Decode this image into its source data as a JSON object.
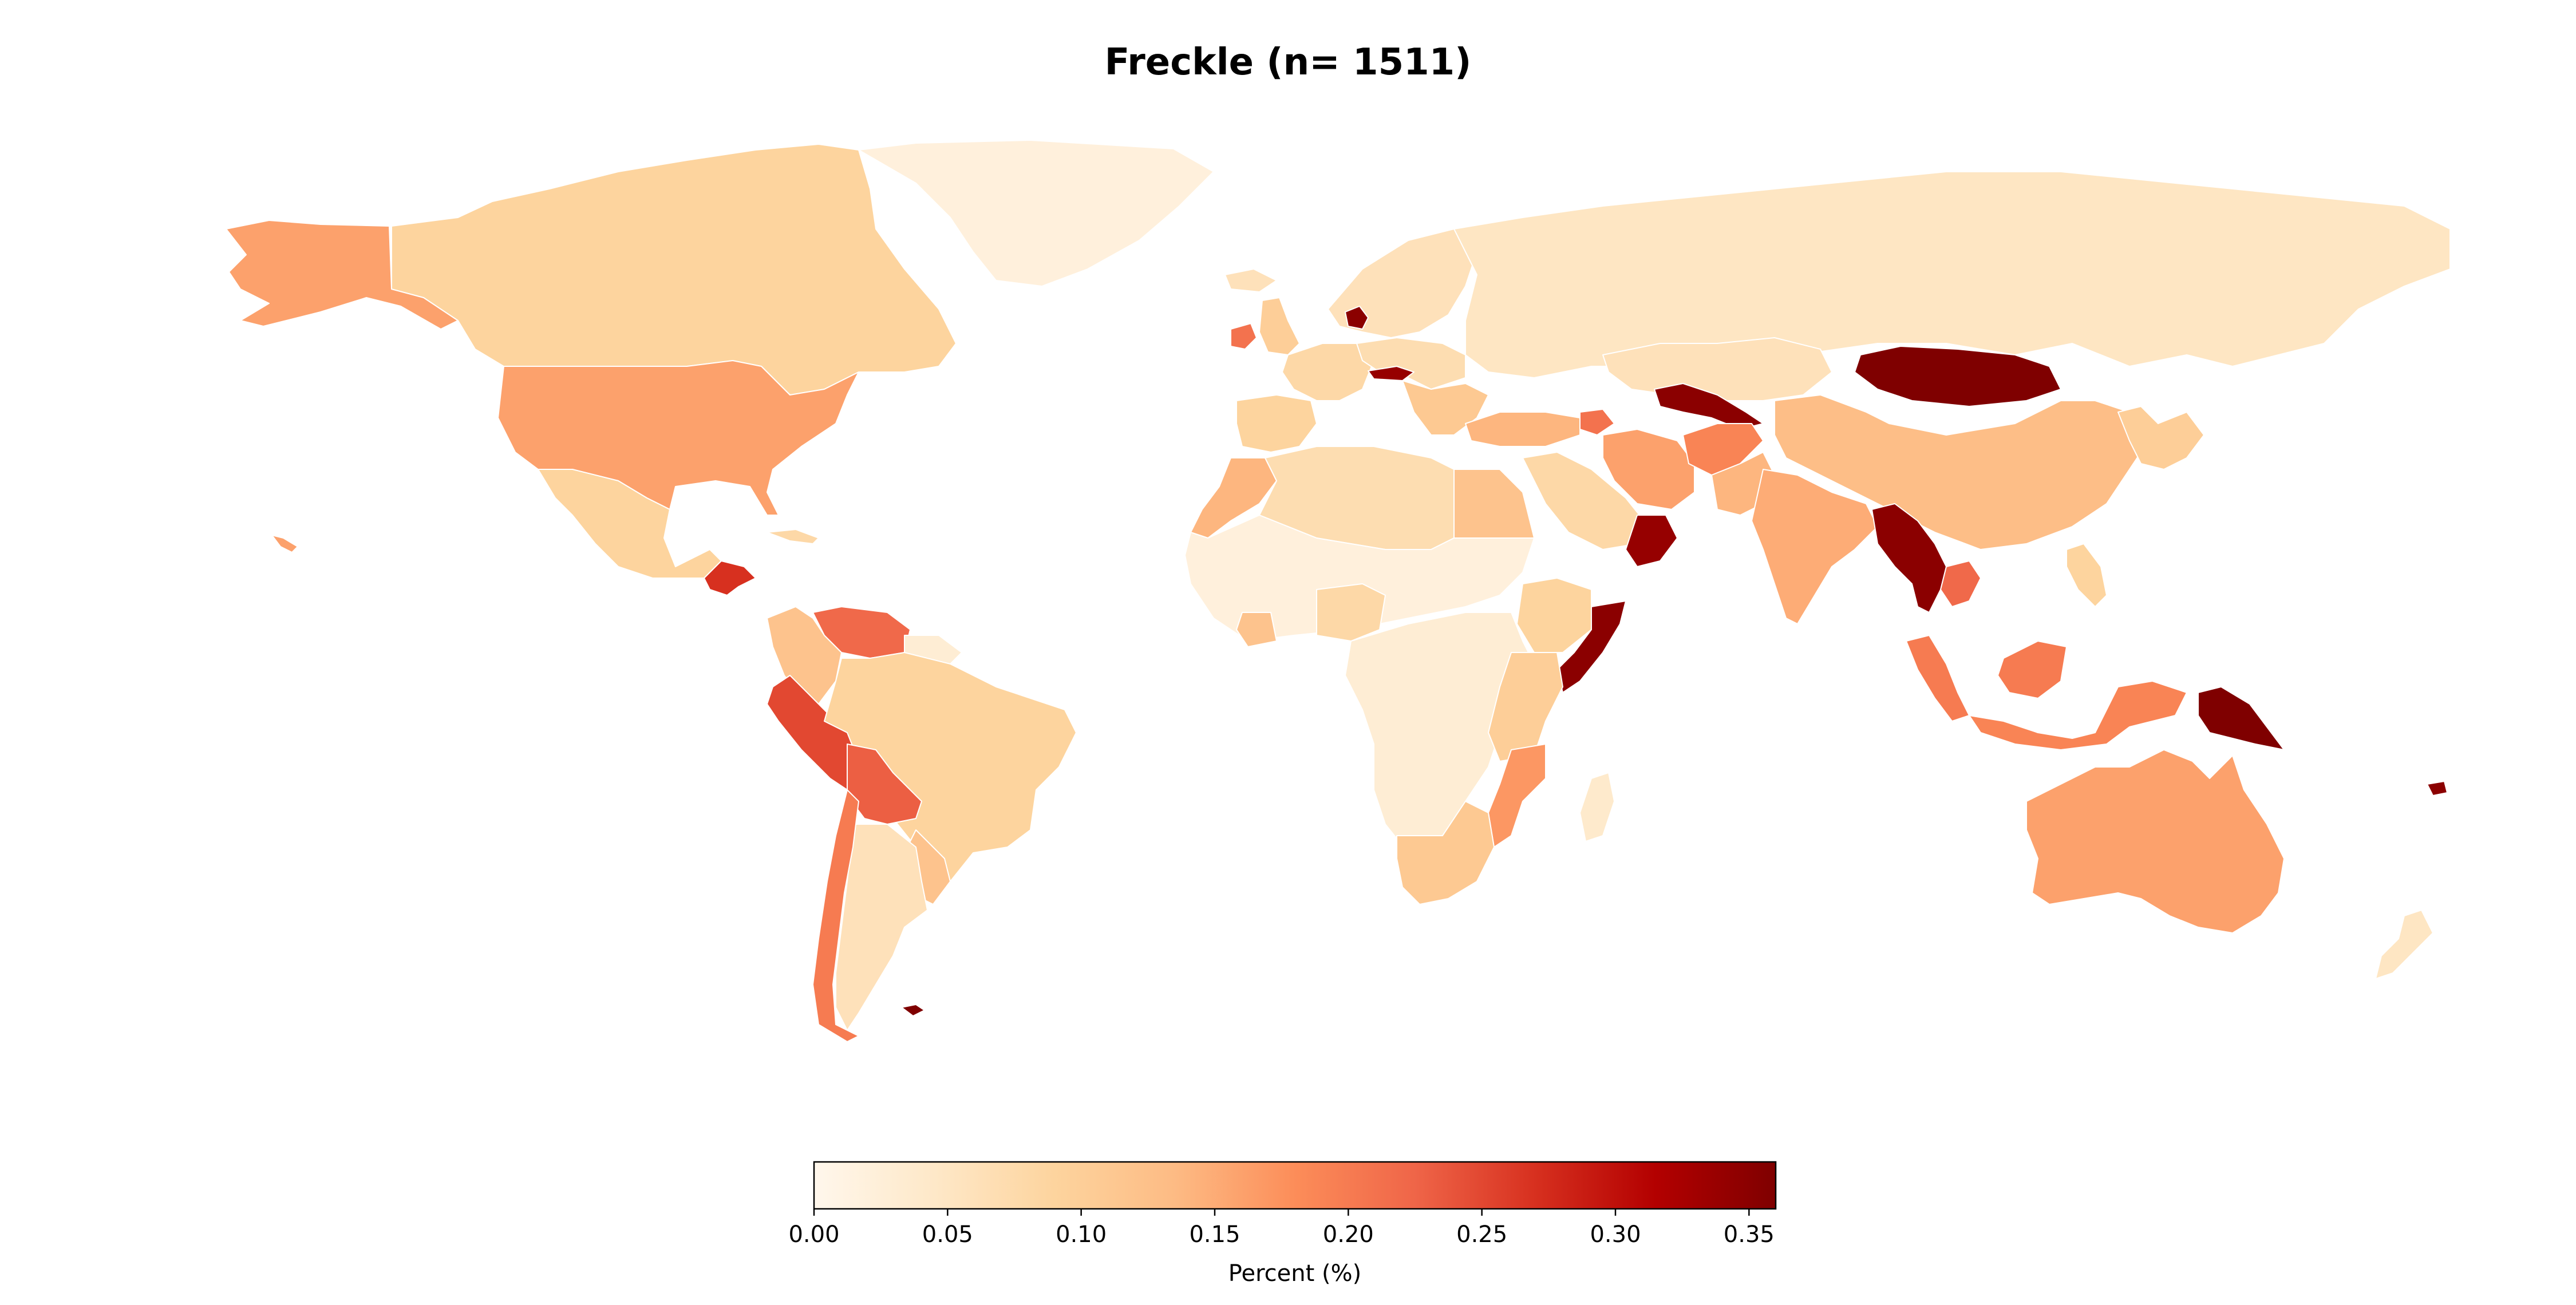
{
  "title": "Freckle (n= 1511)",
  "colormap": {
    "name": "OrRd",
    "stops": [
      "#fff7ec",
      "#fee8c8",
      "#fdd49e",
      "#fdbb84",
      "#fc8d59",
      "#ef6548",
      "#d7301f",
      "#b30000",
      "#7f0000"
    ]
  },
  "colorbar": {
    "min": 0.0,
    "max": 0.36,
    "ticks": [
      "0.00",
      "0.05",
      "0.10",
      "0.15",
      "0.20",
      "0.25",
      "0.30",
      "0.35"
    ],
    "label": "Percent (%)"
  },
  "regions": [
    {
      "id": "alaska",
      "value": 0.16
    },
    {
      "id": "canada",
      "value": 0.09
    },
    {
      "id": "greenland",
      "value": 0.02
    },
    {
      "id": "usa",
      "value": 0.16
    },
    {
      "id": "mexico",
      "value": 0.09
    },
    {
      "id": "central-america",
      "value": 0.27
    },
    {
      "id": "cuba",
      "value": 0.08
    },
    {
      "id": "colombia",
      "value": 0.12
    },
    {
      "id": "venezuela",
      "value": 0.22
    },
    {
      "id": "guianas",
      "value": 0.03
    },
    {
      "id": "ecuador-peru",
      "value": 0.25
    },
    {
      "id": "brazil",
      "value": 0.09
    },
    {
      "id": "bolivia",
      "value": 0.23
    },
    {
      "id": "paraguay-uruguay",
      "value": 0.12
    },
    {
      "id": "argentina",
      "value": 0.06
    },
    {
      "id": "chile",
      "value": 0.2
    },
    {
      "id": "falklands",
      "value": 0.36
    },
    {
      "id": "iceland",
      "value": 0.06
    },
    {
      "id": "uk",
      "value": 0.1
    },
    {
      "id": "ireland",
      "value": 0.21
    },
    {
      "id": "scandinavia",
      "value": 0.06
    },
    {
      "id": "denmark",
      "value": 0.35
    },
    {
      "id": "western-europe",
      "value": 0.08
    },
    {
      "id": "iberia",
      "value": 0.09
    },
    {
      "id": "central-europe",
      "value": 0.07
    },
    {
      "id": "austria",
      "value": 0.34
    },
    {
      "id": "balkans",
      "value": 0.11
    },
    {
      "id": "russia",
      "value": 0.05
    },
    {
      "id": "turkey",
      "value": 0.14
    },
    {
      "id": "caucasus",
      "value": 0.21
    },
    {
      "id": "north-africa",
      "value": 0.07
    },
    {
      "id": "morocco",
      "value": 0.14
    },
    {
      "id": "egypt",
      "value": 0.12
    },
    {
      "id": "arabia",
      "value": 0.08
    },
    {
      "id": "oman-yemen",
      "value": 0.34
    },
    {
      "id": "iran",
      "value": 0.16
    },
    {
      "id": "afghanistan",
      "value": 0.19
    },
    {
      "id": "kazakhstan",
      "value": 0.06
    },
    {
      "id": "uzbekistan",
      "value": 0.35
    },
    {
      "id": "pakistan",
      "value": 0.14
    },
    {
      "id": "india",
      "value": 0.15
    },
    {
      "id": "mongolia",
      "value": 0.36
    },
    {
      "id": "china",
      "value": 0.13
    },
    {
      "id": "korea-japan",
      "value": 0.1
    },
    {
      "id": "myanmar-thailand",
      "value": 0.35
    },
    {
      "id": "vietnam",
      "value": 0.22
    },
    {
      "id": "philippines",
      "value": 0.09
    },
    {
      "id": "malaysia",
      "value": 0.2
    },
    {
      "id": "borneo",
      "value": 0.2
    },
    {
      "id": "indonesia",
      "value": 0.19
    },
    {
      "id": "papua-new-guinea",
      "value": 0.36
    },
    {
      "id": "west-africa",
      "value": 0.02
    },
    {
      "id": "ivory-coast",
      "value": 0.12
    },
    {
      "id": "nigeria",
      "value": 0.08
    },
    {
      "id": "central-africa",
      "value": 0.03
    },
    {
      "id": "ethiopia",
      "value": 0.09
    },
    {
      "id": "somalia",
      "value": 0.35
    },
    {
      "id": "kenya-tanzania",
      "value": 0.1
    },
    {
      "id": "mozambique",
      "value": 0.17
    },
    {
      "id": "southern-africa",
      "value": 0.11
    },
    {
      "id": "madagascar",
      "value": 0.04
    },
    {
      "id": "australia",
      "value": 0.16
    },
    {
      "id": "new-zealand",
      "value": 0.05
    },
    {
      "id": "fiji",
      "value": 0.35
    },
    {
      "id": "hawaii",
      "value": 0.16
    }
  ]
}
